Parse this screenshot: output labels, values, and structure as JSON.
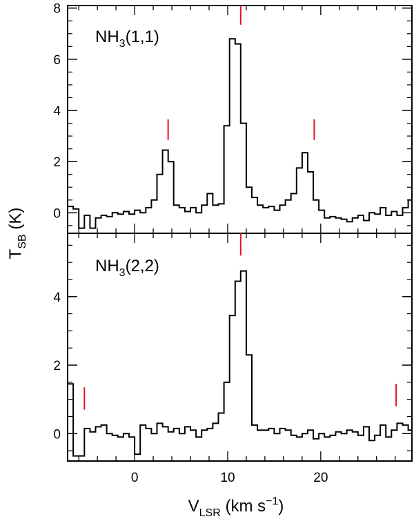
{
  "chart_data": [
    {
      "type": "line",
      "panel": "top",
      "label": {
        "main": "NH",
        "sub": "3",
        "rest": "(1,1)"
      },
      "xlim": [
        -7.2,
        29.8
      ],
      "ylim": [
        -0.8,
        8.1
      ],
      "yticks": [
        "0",
        "2",
        "4",
        "6",
        "8"
      ],
      "ytick_values": [
        0,
        2,
        4,
        6,
        8
      ],
      "marker_color": "#e8101c",
      "markers": [
        {
          "x": 3.6,
          "y0": 2.85,
          "y1": 3.65
        },
        {
          "x": 11.4,
          "y0": 7.35,
          "y1": 8.1
        },
        {
          "x": 19.3,
          "y0": 2.85,
          "y1": 3.65
        }
      ],
      "series": [
        {
          "x": [
            -7.2,
            -6.6,
            -6.0,
            -5.4,
            -4.8,
            -4.2,
            -3.6,
            -3.0,
            -2.4,
            -1.8,
            -1.2,
            -0.6,
            0.0,
            0.6,
            1.2,
            1.8,
            2.4,
            3.0,
            3.6,
            4.2,
            4.8,
            5.4,
            6.0,
            6.6,
            7.2,
            7.8,
            8.4,
            9.0,
            9.6,
            10.2,
            10.8,
            11.4,
            12.0,
            12.6,
            13.2,
            13.8,
            14.4,
            15.0,
            15.6,
            16.2,
            16.8,
            17.4,
            18.0,
            18.6,
            19.2,
            19.8,
            20.4,
            21.0,
            21.6,
            22.2,
            22.8,
            23.4,
            24.0,
            24.6,
            25.2,
            25.8,
            26.4,
            27.0,
            27.6,
            28.2,
            28.8,
            29.4
          ],
          "y": [
            0.25,
            0.15,
            -0.6,
            -0.1,
            -0.6,
            -0.2,
            -0.1,
            -0.15,
            0.0,
            -0.05,
            0.05,
            -0.05,
            0.1,
            0.0,
            0.2,
            0.5,
            1.5,
            2.45,
            2.0,
            0.3,
            0.2,
            0.05,
            0.2,
            0.0,
            0.3,
            0.75,
            0.3,
            0.35,
            3.4,
            6.8,
            6.6,
            3.5,
            1.0,
            0.6,
            0.3,
            0.2,
            0.25,
            0.1,
            0.3,
            0.5,
            0.75,
            1.75,
            2.35,
            1.6,
            0.5,
            0.1,
            -0.2,
            -0.15,
            -0.2,
            -0.25,
            -0.35,
            -0.2,
            -0.1,
            -0.3,
            0.0,
            -0.05,
            0.2,
            -0.1,
            0.05,
            -0.1,
            0.2,
            0.5
          ]
        }
      ]
    },
    {
      "type": "line",
      "panel": "bottom",
      "label": {
        "main": "NH",
        "sub": "3",
        "rest": "(2,2)"
      },
      "xlim": [
        -7.2,
        29.8
      ],
      "ylim": [
        -0.8,
        5.85
      ],
      "yticks": [
        "0",
        "2",
        "4"
      ],
      "ytick_values": [
        0,
        2,
        4
      ],
      "marker_color": "#e8101c",
      "markers": [
        {
          "x": -5.4,
          "y0": 0.7,
          "y1": 1.35
        },
        {
          "x": 11.4,
          "y0": 5.2,
          "y1": 5.85
        },
        {
          "x": 28.1,
          "y0": 0.8,
          "y1": 1.45
        }
      ],
      "series": [
        {
          "x": [
            -7.2,
            -6.6,
            -6.0,
            -5.4,
            -4.8,
            -4.2,
            -3.6,
            -3.0,
            -2.4,
            -1.8,
            -1.2,
            -0.6,
            0.0,
            0.6,
            1.2,
            1.8,
            2.4,
            3.0,
            3.6,
            4.2,
            4.8,
            5.4,
            6.0,
            6.6,
            7.2,
            7.8,
            8.4,
            9.0,
            9.6,
            10.2,
            10.8,
            11.4,
            12.0,
            12.6,
            13.2,
            13.8,
            14.4,
            15.0,
            15.6,
            16.2,
            16.8,
            17.4,
            18.0,
            18.6,
            19.2,
            19.8,
            20.4,
            21.0,
            21.6,
            22.2,
            22.8,
            23.4,
            24.0,
            24.6,
            25.2,
            25.8,
            26.4,
            27.0,
            27.6,
            28.2,
            28.8,
            29.4
          ],
          "y": [
            1.45,
            -0.65,
            -0.65,
            0.15,
            0.05,
            0.2,
            0.25,
            0.0,
            -0.05,
            -0.1,
            0.0,
            -0.1,
            -0.6,
            0.25,
            0.15,
            0.0,
            0.3,
            0.2,
            0.05,
            0.15,
            0.0,
            0.2,
            0.1,
            -0.1,
            0.1,
            0.15,
            0.3,
            0.6,
            1.5,
            3.45,
            4.45,
            4.75,
            2.3,
            0.25,
            0.1,
            0.1,
            0.15,
            0.0,
            0.15,
            0.1,
            -0.05,
            -0.1,
            0.0,
            0.1,
            -0.15,
            0.0,
            -0.1,
            -0.05,
            0.05,
            0.0,
            0.1,
            0.05,
            -0.05,
            0.2,
            -0.2,
            -0.05,
            0.25,
            -0.1,
            0.1,
            0.3,
            0.25,
            0.1
          ]
        }
      ]
    }
  ],
  "shared_x": {
    "xticks": [
      "0",
      "10",
      "20"
    ],
    "xtick_values": [
      0,
      10,
      20
    ],
    "title": {
      "main": "V",
      "sub": "LSR",
      "rest": " (km s",
      "sup": "−1",
      "end": ")"
    }
  },
  "shared_y": {
    "title": {
      "main": "T",
      "sub": "SB",
      "rest": " (K)"
    }
  }
}
